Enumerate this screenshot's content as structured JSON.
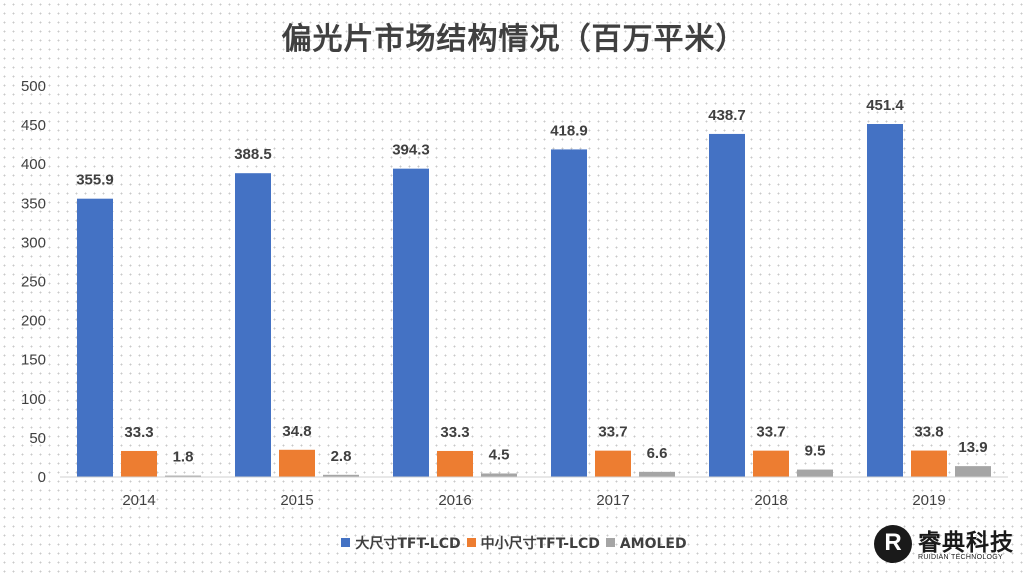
{
  "chart_data": {
    "type": "bar",
    "title": "偏光片市场结构情况（百万平米）",
    "xlabel": "",
    "ylabel": "",
    "categories": [
      "2014",
      "2015",
      "2016",
      "2017",
      "2018",
      "2019"
    ],
    "series": [
      {
        "name": "大尺寸TFT-LCD",
        "color": "#4472c4",
        "values": [
          355.9,
          388.5,
          394.3,
          418.9,
          438.7,
          451.4
        ],
        "labels": [
          "355.9",
          "388.5",
          "394.3",
          "418.9",
          "438.7",
          "451.4"
        ]
      },
      {
        "name": "中小尺寸TFT-LCD",
        "color": "#ed7d31",
        "values": [
          33.3,
          34.8,
          33.3,
          33.7,
          33.7,
          33.8
        ],
        "labels": [
          "33.3",
          "34.8",
          "33.3",
          "33.7",
          "33.7",
          "33.8"
        ]
      },
      {
        "name": "AMOLED",
        "color": "#a5a5a5",
        "values": [
          1.8,
          2.8,
          4.5,
          6.6,
          9.5,
          13.9
        ],
        "labels": [
          "1.8",
          "2.8",
          "4.5",
          "6.6",
          "9.5",
          "13.9"
        ]
      }
    ],
    "ylim": [
      0,
      500
    ],
    "yticks": [
      0,
      50,
      100,
      150,
      200,
      250,
      300,
      350,
      400,
      450,
      500
    ],
    "grid": false,
    "legend_position": "bottom"
  },
  "logo": {
    "mark": "R",
    "name": "睿典科技",
    "subtitle": "RUIDIAN TECHNOLOGY"
  }
}
